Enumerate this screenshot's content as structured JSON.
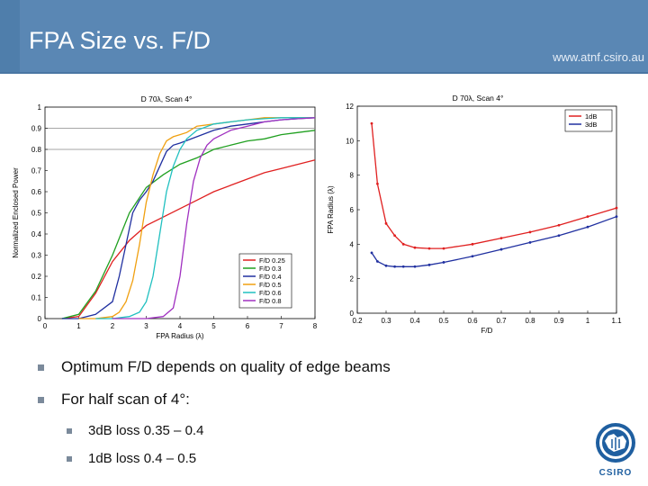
{
  "slide": {
    "title": "FPA Size vs. F/D",
    "url": "www.atnf.csiro.au",
    "bullets": [
      {
        "level": 1,
        "text": "Optimum F/D depends on quality of edge beams"
      },
      {
        "level": 1,
        "text": "For half scan of 4°:"
      },
      {
        "level": 2,
        "text": "3dB loss 0.35 – 0.4"
      },
      {
        "level": 2,
        "text": "1dB loss 0.4 – 0.5"
      }
    ],
    "logo_text": "CSIRO",
    "colors": {
      "header": "#5a87b4",
      "accent": "#4f7eab"
    }
  },
  "chart_data": [
    {
      "type": "line",
      "title": "D 70λ, Scan 4°",
      "xlabel": "FPA Radius (λ)",
      "ylabel": "Normalized Enclosed Power",
      "xlim": [
        0,
        8
      ],
      "ylim": [
        0,
        1
      ],
      "xticks": [
        "0",
        "1",
        "2",
        "3",
        "4",
        "5",
        "6",
        "7",
        "8"
      ],
      "yticks": [
        "0",
        "0.1",
        "0.2",
        "0.3",
        "0.4",
        "0.5",
        "0.6",
        "0.7",
        "0.8",
        "0.9",
        "1"
      ],
      "grid": "horizontal-lines-0.8-0.9",
      "legend_position": "bottom-right",
      "series": [
        {
          "name": "F/D 0.25",
          "color": "#e02020",
          "x": [
            0.5,
            1.0,
            1.5,
            2.0,
            2.5,
            3.0,
            3.5,
            4.0,
            4.5,
            5.0,
            5.5,
            6.0,
            6.5,
            7.0,
            7.5,
            8.0
          ],
          "y": [
            0,
            0.01,
            0.12,
            0.27,
            0.37,
            0.44,
            0.48,
            0.52,
            0.56,
            0.6,
            0.63,
            0.66,
            0.69,
            0.71,
            0.73,
            0.75
          ]
        },
        {
          "name": "F/D 0.3",
          "color": "#20a020",
          "x": [
            0.5,
            1.0,
            1.5,
            2.0,
            2.5,
            3.0,
            3.5,
            4.0,
            4.5,
            5.0,
            5.5,
            6.0,
            6.5,
            7.0,
            7.5,
            8.0
          ],
          "y": [
            0,
            0.02,
            0.13,
            0.3,
            0.5,
            0.62,
            0.68,
            0.73,
            0.76,
            0.8,
            0.82,
            0.84,
            0.85,
            0.87,
            0.88,
            0.89
          ]
        },
        {
          "name": "F/D 0.4",
          "color": "#2030a0",
          "x": [
            0.5,
            1.0,
            1.5,
            2.0,
            2.2,
            2.4,
            2.6,
            2.8,
            3.0,
            3.2,
            3.4,
            3.6,
            3.8,
            4.0,
            4.5,
            5.0,
            5.5,
            6.0,
            6.5,
            7.0,
            7.5,
            8.0
          ],
          "y": [
            0,
            0,
            0.02,
            0.08,
            0.2,
            0.35,
            0.5,
            0.56,
            0.6,
            0.65,
            0.72,
            0.79,
            0.82,
            0.83,
            0.86,
            0.89,
            0.91,
            0.92,
            0.93,
            0.94,
            0.945,
            0.95
          ]
        },
        {
          "name": "F/D 0.5",
          "color": "#f0a010",
          "x": [
            1.0,
            1.5,
            2.0,
            2.2,
            2.4,
            2.6,
            2.8,
            3.0,
            3.2,
            3.4,
            3.6,
            3.8,
            4.0,
            4.2,
            4.5,
            5.0,
            5.5,
            6.0,
            6.5,
            7.0,
            7.5,
            8.0
          ],
          "y": [
            0,
            0,
            0.01,
            0.03,
            0.08,
            0.18,
            0.35,
            0.55,
            0.68,
            0.78,
            0.84,
            0.86,
            0.87,
            0.88,
            0.91,
            0.92,
            0.93,
            0.94,
            0.95,
            0.95,
            0.95,
            0.95
          ]
        },
        {
          "name": "F/D 0.6",
          "color": "#20c0c0",
          "x": [
            1.5,
            2.0,
            2.5,
            2.8,
            3.0,
            3.2,
            3.4,
            3.6,
            3.8,
            4.0,
            4.2,
            4.5,
            5.0,
            5.5,
            6.0,
            6.5,
            7.0,
            7.5,
            8.0
          ],
          "y": [
            0,
            0,
            0.01,
            0.03,
            0.08,
            0.2,
            0.4,
            0.6,
            0.72,
            0.8,
            0.85,
            0.89,
            0.92,
            0.93,
            0.94,
            0.945,
            0.95,
            0.95,
            0.95
          ]
        },
        {
          "name": "F/D 0.8",
          "color": "#a030c0",
          "x": [
            2.0,
            3.0,
            3.5,
            3.8,
            4.0,
            4.2,
            4.4,
            4.6,
            4.8,
            5.0,
            5.5,
            6.0,
            6.5,
            7.0,
            7.5,
            8.0
          ],
          "y": [
            0,
            0,
            0.01,
            0.05,
            0.2,
            0.45,
            0.65,
            0.76,
            0.82,
            0.85,
            0.89,
            0.91,
            0.93,
            0.94,
            0.945,
            0.95
          ]
        }
      ]
    },
    {
      "type": "line",
      "title": "D 70λ, Scan 4°",
      "xlabel": "F/D",
      "ylabel": "FPA Radius (λ)",
      "xlim": [
        0.2,
        1.1
      ],
      "ylim": [
        0,
        12
      ],
      "xticks": [
        "0.2",
        "0.3",
        "0.4",
        "0.5",
        "0.6",
        "0.7",
        "0.8",
        "0.9",
        "1",
        "1.1"
      ],
      "yticks": [
        "0",
        "2",
        "4",
        "6",
        "8",
        "10",
        "12"
      ],
      "legend_position": "top-right",
      "series": [
        {
          "name": "1dB",
          "color": "#e02020",
          "x": [
            0.25,
            0.27,
            0.3,
            0.33,
            0.36,
            0.4,
            0.45,
            0.5,
            0.6,
            0.7,
            0.8,
            0.9,
            1.0,
            1.1
          ],
          "y": [
            11,
            7.5,
            5.2,
            4.5,
            4.0,
            3.8,
            3.75,
            3.75,
            4.0,
            4.35,
            4.7,
            5.1,
            5.6,
            6.1
          ]
        },
        {
          "name": "3dB",
          "color": "#2030a0",
          "x": [
            0.25,
            0.27,
            0.3,
            0.33,
            0.36,
            0.4,
            0.45,
            0.5,
            0.6,
            0.7,
            0.8,
            0.9,
            1.0,
            1.1
          ],
          "y": [
            3.5,
            3.0,
            2.75,
            2.7,
            2.7,
            2.7,
            2.8,
            2.95,
            3.3,
            3.7,
            4.1,
            4.5,
            5.0,
            5.6
          ]
        }
      ]
    }
  ]
}
